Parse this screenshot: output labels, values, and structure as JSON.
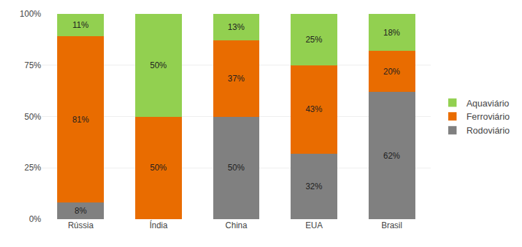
{
  "chart_data": {
    "type": "bar",
    "stacked": true,
    "data_labels": true,
    "grid": true,
    "legend": "right",
    "categories": [
      "Rússia",
      "Índia",
      "China",
      "EUA",
      "Brasil"
    ],
    "series": [
      {
        "name": "Rodoviário",
        "color": "#808080",
        "values": [
          0.08,
          0,
          0.5,
          0.32,
          0.62
        ],
        "value_labels": [
          "8%",
          null,
          "50%",
          "32%",
          "62%"
        ]
      },
      {
        "name": "Ferroviário",
        "color": "#E96C00",
        "values": [
          0.81,
          0.5,
          0.37,
          0.43,
          0.2
        ],
        "value_labels": [
          "81%",
          "50%",
          "37%",
          "43%",
          "20%"
        ]
      },
      {
        "name": "Aquaviário",
        "color": "#92D050",
        "values": [
          0.11,
          0.5,
          0.13,
          0.25,
          0.18
        ],
        "value_labels": [
          "11%",
          "50%",
          "13%",
          "25%",
          "18%"
        ]
      }
    ],
    "ylim": [
      0,
      1.0
    ],
    "yticks": [
      {
        "value": 0,
        "label": "0%"
      },
      {
        "value": 0.25,
        "label": "25%"
      },
      {
        "value": 0.5,
        "label": "50%"
      },
      {
        "value": 0.75,
        "label": "75%"
      },
      {
        "value": 1.0,
        "label": "100%"
      }
    ]
  }
}
